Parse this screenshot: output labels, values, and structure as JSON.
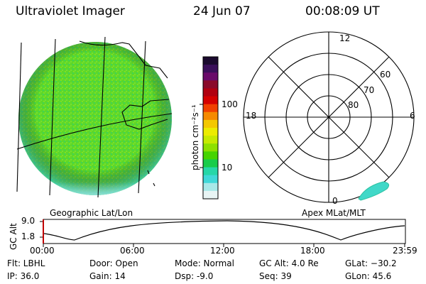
{
  "header": {
    "instrument": "Ultraviolet Imager",
    "date": "24 Jun 07",
    "time": "00:08:09 UT"
  },
  "colorbar": {
    "unit_label": "photon cm⁻²s⁻¹",
    "ticks": [
      "100",
      "10"
    ],
    "colors": [
      "#1a0a2e",
      "#3a0f5a",
      "#6a0a6a",
      "#8a0a2a",
      "#b00010",
      "#d40000",
      "#f04000",
      "#f58a00",
      "#f4c800",
      "#ecec00",
      "#c6ea00",
      "#8ee000",
      "#46d400",
      "#18cc4a",
      "#26d7a8",
      "#40d8d8",
      "#a8e8e8",
      "#e8f4f4"
    ]
  },
  "geo_panel": {
    "label": "Geographic Lat/Lon"
  },
  "polar_panel": {
    "label": "Apex MLat/MLT",
    "mlt_labels": {
      "top": "12",
      "left": "18",
      "right": "6",
      "bottom": "0"
    },
    "lat_labels": [
      "60",
      "70",
      "80"
    ]
  },
  "altitude_plot": {
    "ylabel": "GC Alt",
    "yticks": [
      "9.0",
      "1.8"
    ],
    "xticks": [
      "00:00",
      "06:00",
      "12:00",
      "18:00",
      "23:59"
    ]
  },
  "info": {
    "filter": "Flt: LBHL",
    "ip": "IP: 36.0",
    "door": "Door: Open",
    "gain": "Gain: 14",
    "mode": "Mode: Normal",
    "dsp": "Dsp:    -9.0",
    "gc_alt": "GC Alt: 4.0 Re",
    "seq": "Seq: 39",
    "glat": "GLat: −30.2",
    "glon": "GLon:  45.6"
  }
}
